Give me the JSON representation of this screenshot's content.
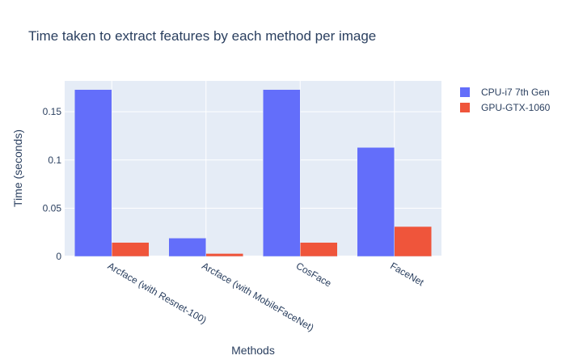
{
  "chart_data": {
    "type": "bar",
    "title": "Time taken to extract features by each method per image",
    "xlabel": "Methods",
    "ylabel": "Time (seconds)",
    "categories": [
      "Arcface (with Resnet-100)",
      "Arcface (with MobileFaceNet)",
      "CosFace",
      "FaceNet"
    ],
    "series": [
      {
        "name": "CPU-i7 7th Gen",
        "color": "#636efa",
        "values": [
          0.173,
          0.019,
          0.173,
          0.113
        ]
      },
      {
        "name": "GPU-GTX-1060",
        "color": "#ef553b",
        "values": [
          0.0145,
          0.003,
          0.0145,
          0.031
        ]
      }
    ],
    "ylim": [
      0,
      0.182
    ],
    "yticks": [
      0,
      0.05,
      0.1,
      0.15
    ],
    "ytick_labels": [
      "0",
      "0.05",
      "0.1",
      "0.15"
    ],
    "grid": true,
    "legend_position": "top-right",
    "plot_background": "#e5ecf6"
  }
}
